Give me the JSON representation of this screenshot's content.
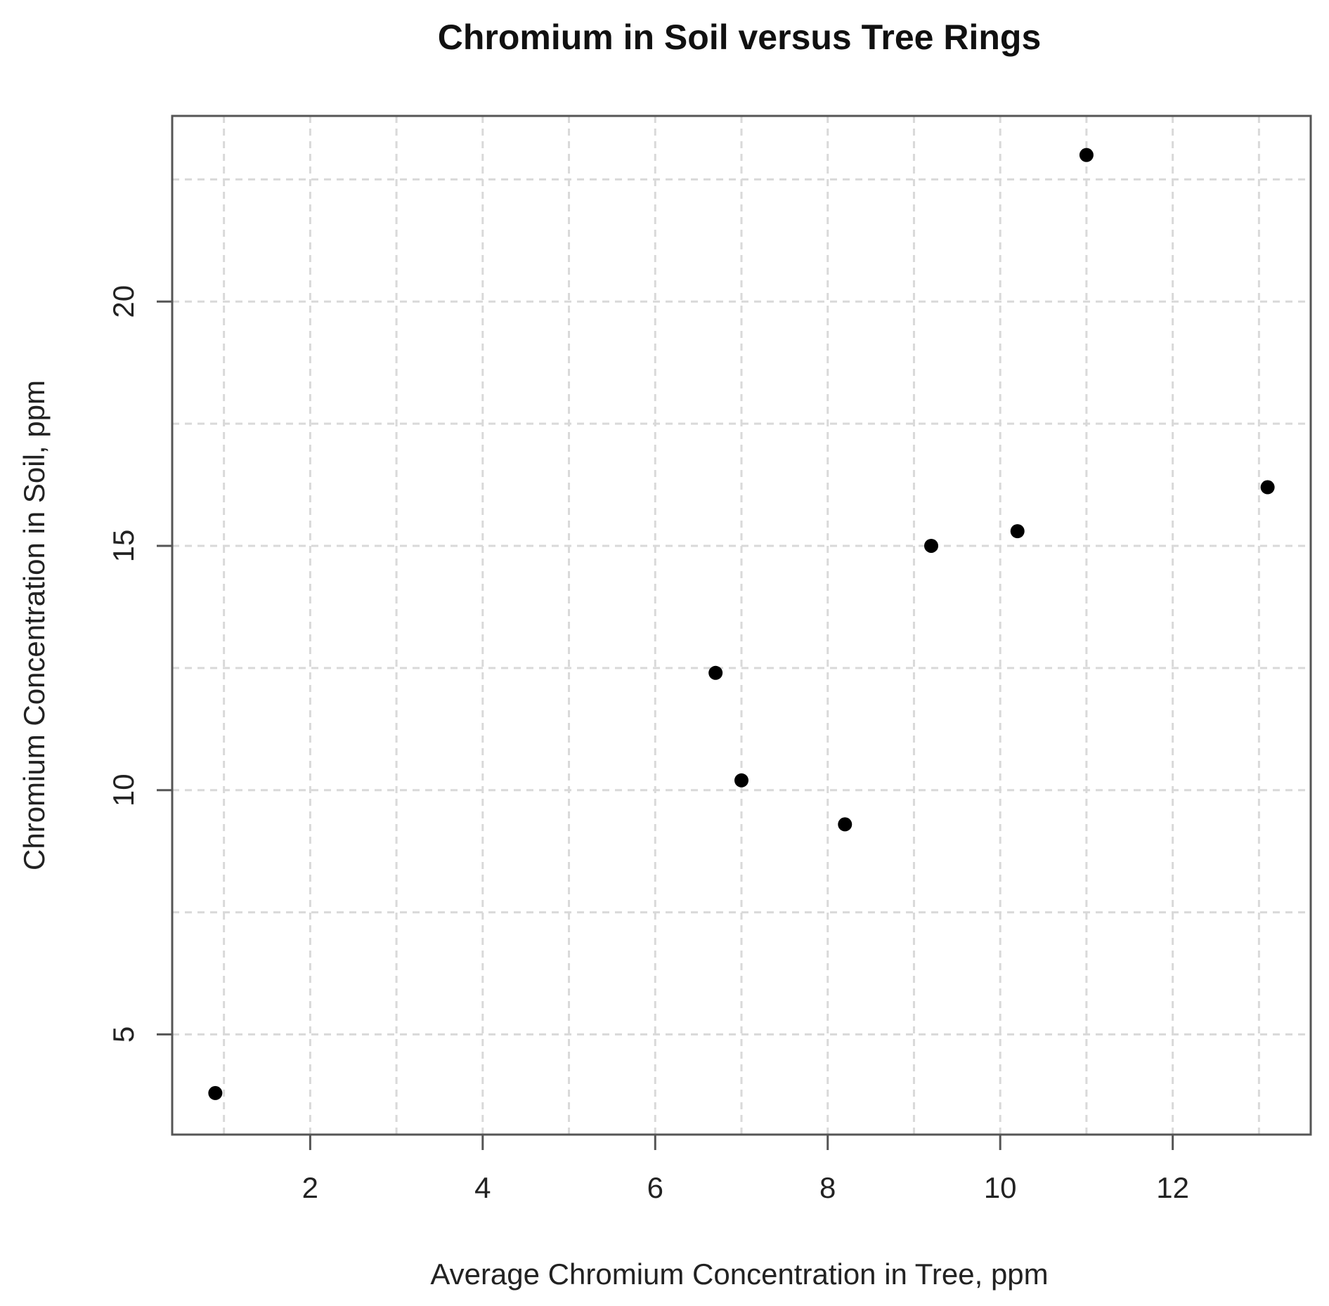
{
  "chart_data": {
    "type": "scatter",
    "title": "Chromium in Soil versus Tree Rings",
    "xlabel": "Average Chromium Concentration in Tree, ppm",
    "ylabel": "Chromium Concentration in Soil, ppm",
    "xlim": [
      0.4,
      13.6
    ],
    "ylim": [
      2.95,
      23.8
    ],
    "xticks": [
      2,
      4,
      6,
      8,
      10,
      12
    ],
    "yticks": [
      5,
      10,
      15,
      20
    ],
    "grid": true,
    "legend": "none",
    "point_color": "#000000",
    "series": [
      {
        "x": [
          0.9,
          6.7,
          7.0,
          8.2,
          9.2,
          10.2,
          11.0,
          13.1
        ],
        "y": [
          3.8,
          12.4,
          10.2,
          9.3,
          15.0,
          15.3,
          23.0,
          16.2
        ]
      }
    ]
  }
}
